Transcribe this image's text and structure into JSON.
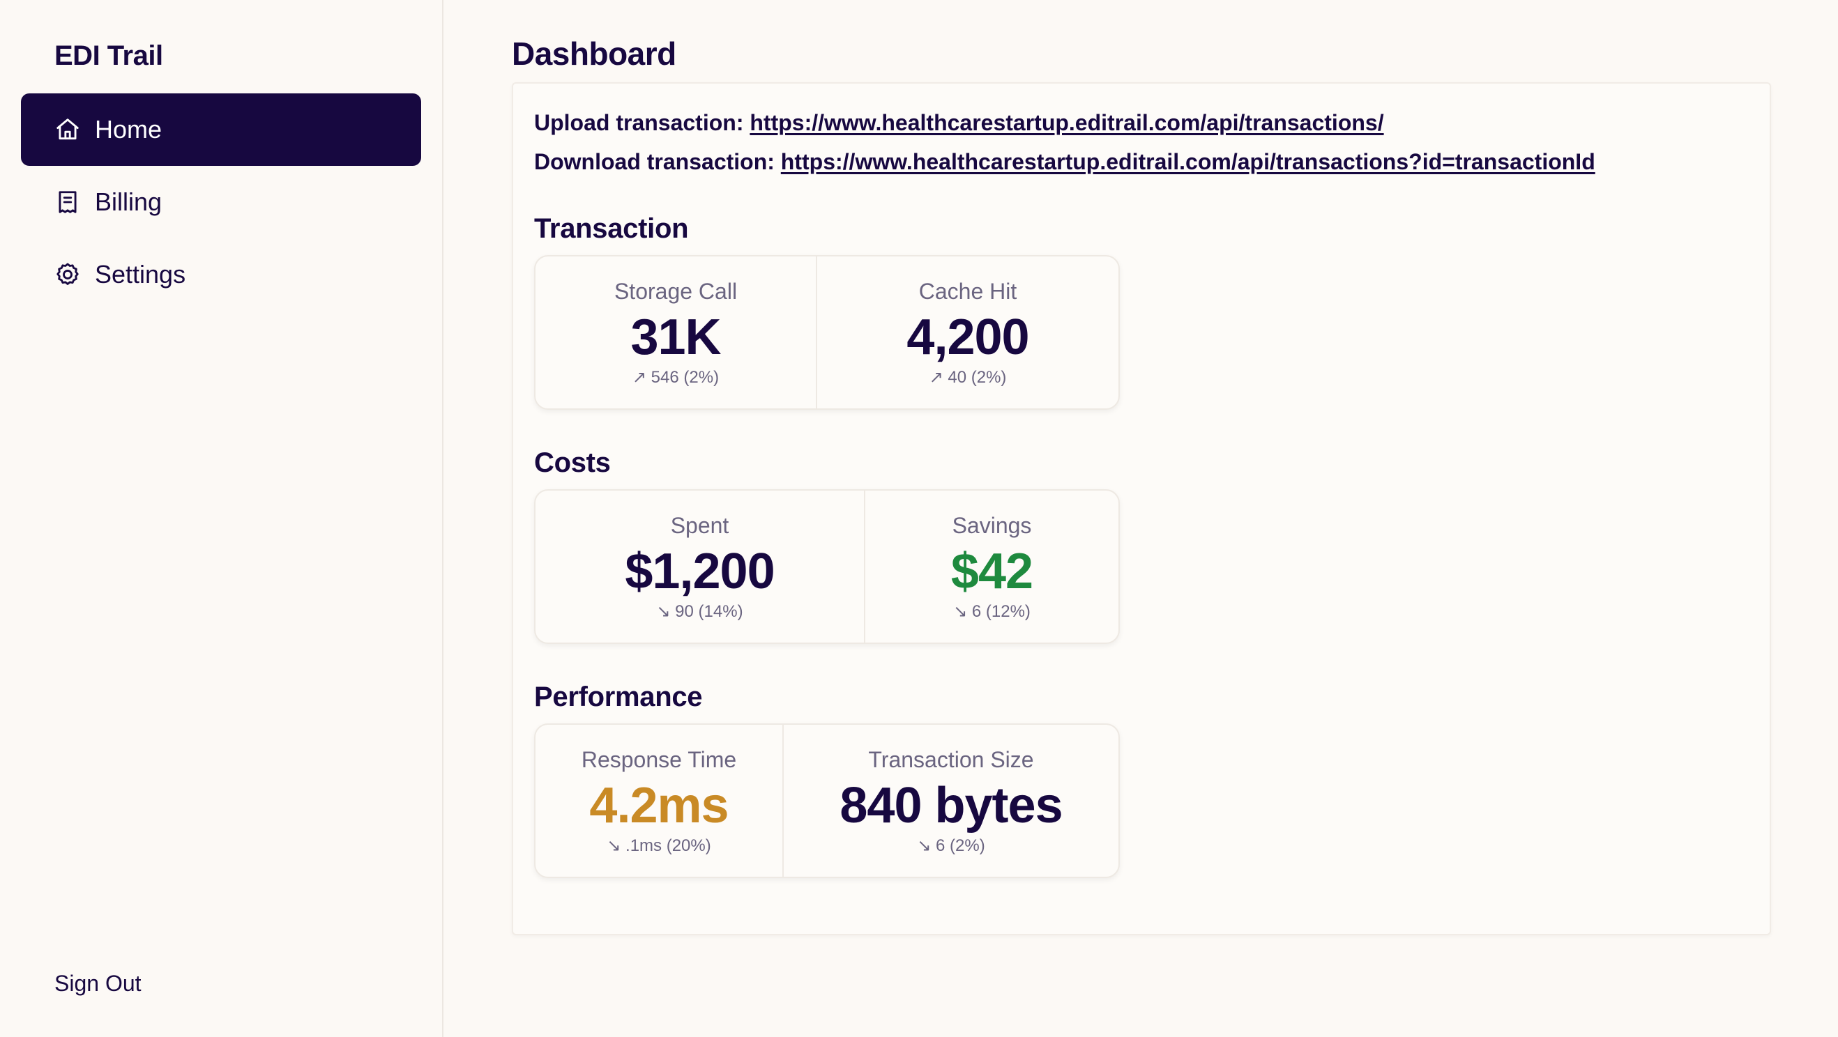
{
  "sidebar": {
    "brand": "EDI Trail",
    "items": [
      {
        "label": "Home",
        "icon": "home-icon",
        "active": true
      },
      {
        "label": "Billing",
        "icon": "receipt-icon",
        "active": false
      },
      {
        "label": "Settings",
        "icon": "gear-icon",
        "active": false
      }
    ],
    "sign_out": "Sign Out"
  },
  "main": {
    "title": "Dashboard",
    "upload": {
      "label": "Upload transaction:",
      "url": "https://www.healthcarestartup.editrail.com/api/transactions/"
    },
    "download": {
      "label": "Download transaction:",
      "url": "https://www.healthcarestartup.editrail.com/api/transactions?id=transactionId"
    },
    "sections": [
      {
        "title": "Transaction",
        "stats": [
          {
            "label": "Storage Call",
            "value": "31K",
            "delta": "↗ 546 (2%)"
          },
          {
            "label": "Cache Hit",
            "value": "4,200",
            "delta": "↗ 40 (2%)"
          }
        ]
      },
      {
        "title": "Costs",
        "stats": [
          {
            "label": "Spent",
            "value": "$1,200",
            "delta": "↘ 90 (14%)"
          },
          {
            "label": "Savings",
            "value": "$42",
            "delta": "↘ 6 (12%)",
            "color": "#1e8a3e"
          }
        ]
      },
      {
        "title": "Performance",
        "stats": [
          {
            "label": "Response Time",
            "value": "4.2ms",
            "delta": "↘ .1ms (20%)",
            "color": "#c98a25"
          },
          {
            "label": "Transaction Size",
            "value": "840 bytes",
            "delta": "↘ 6 (2%)"
          }
        ]
      }
    ]
  },
  "colors": {
    "primary": "#170840",
    "background": "#fcf9f5",
    "positive": "#1e8a3e",
    "warning": "#c98a25"
  }
}
